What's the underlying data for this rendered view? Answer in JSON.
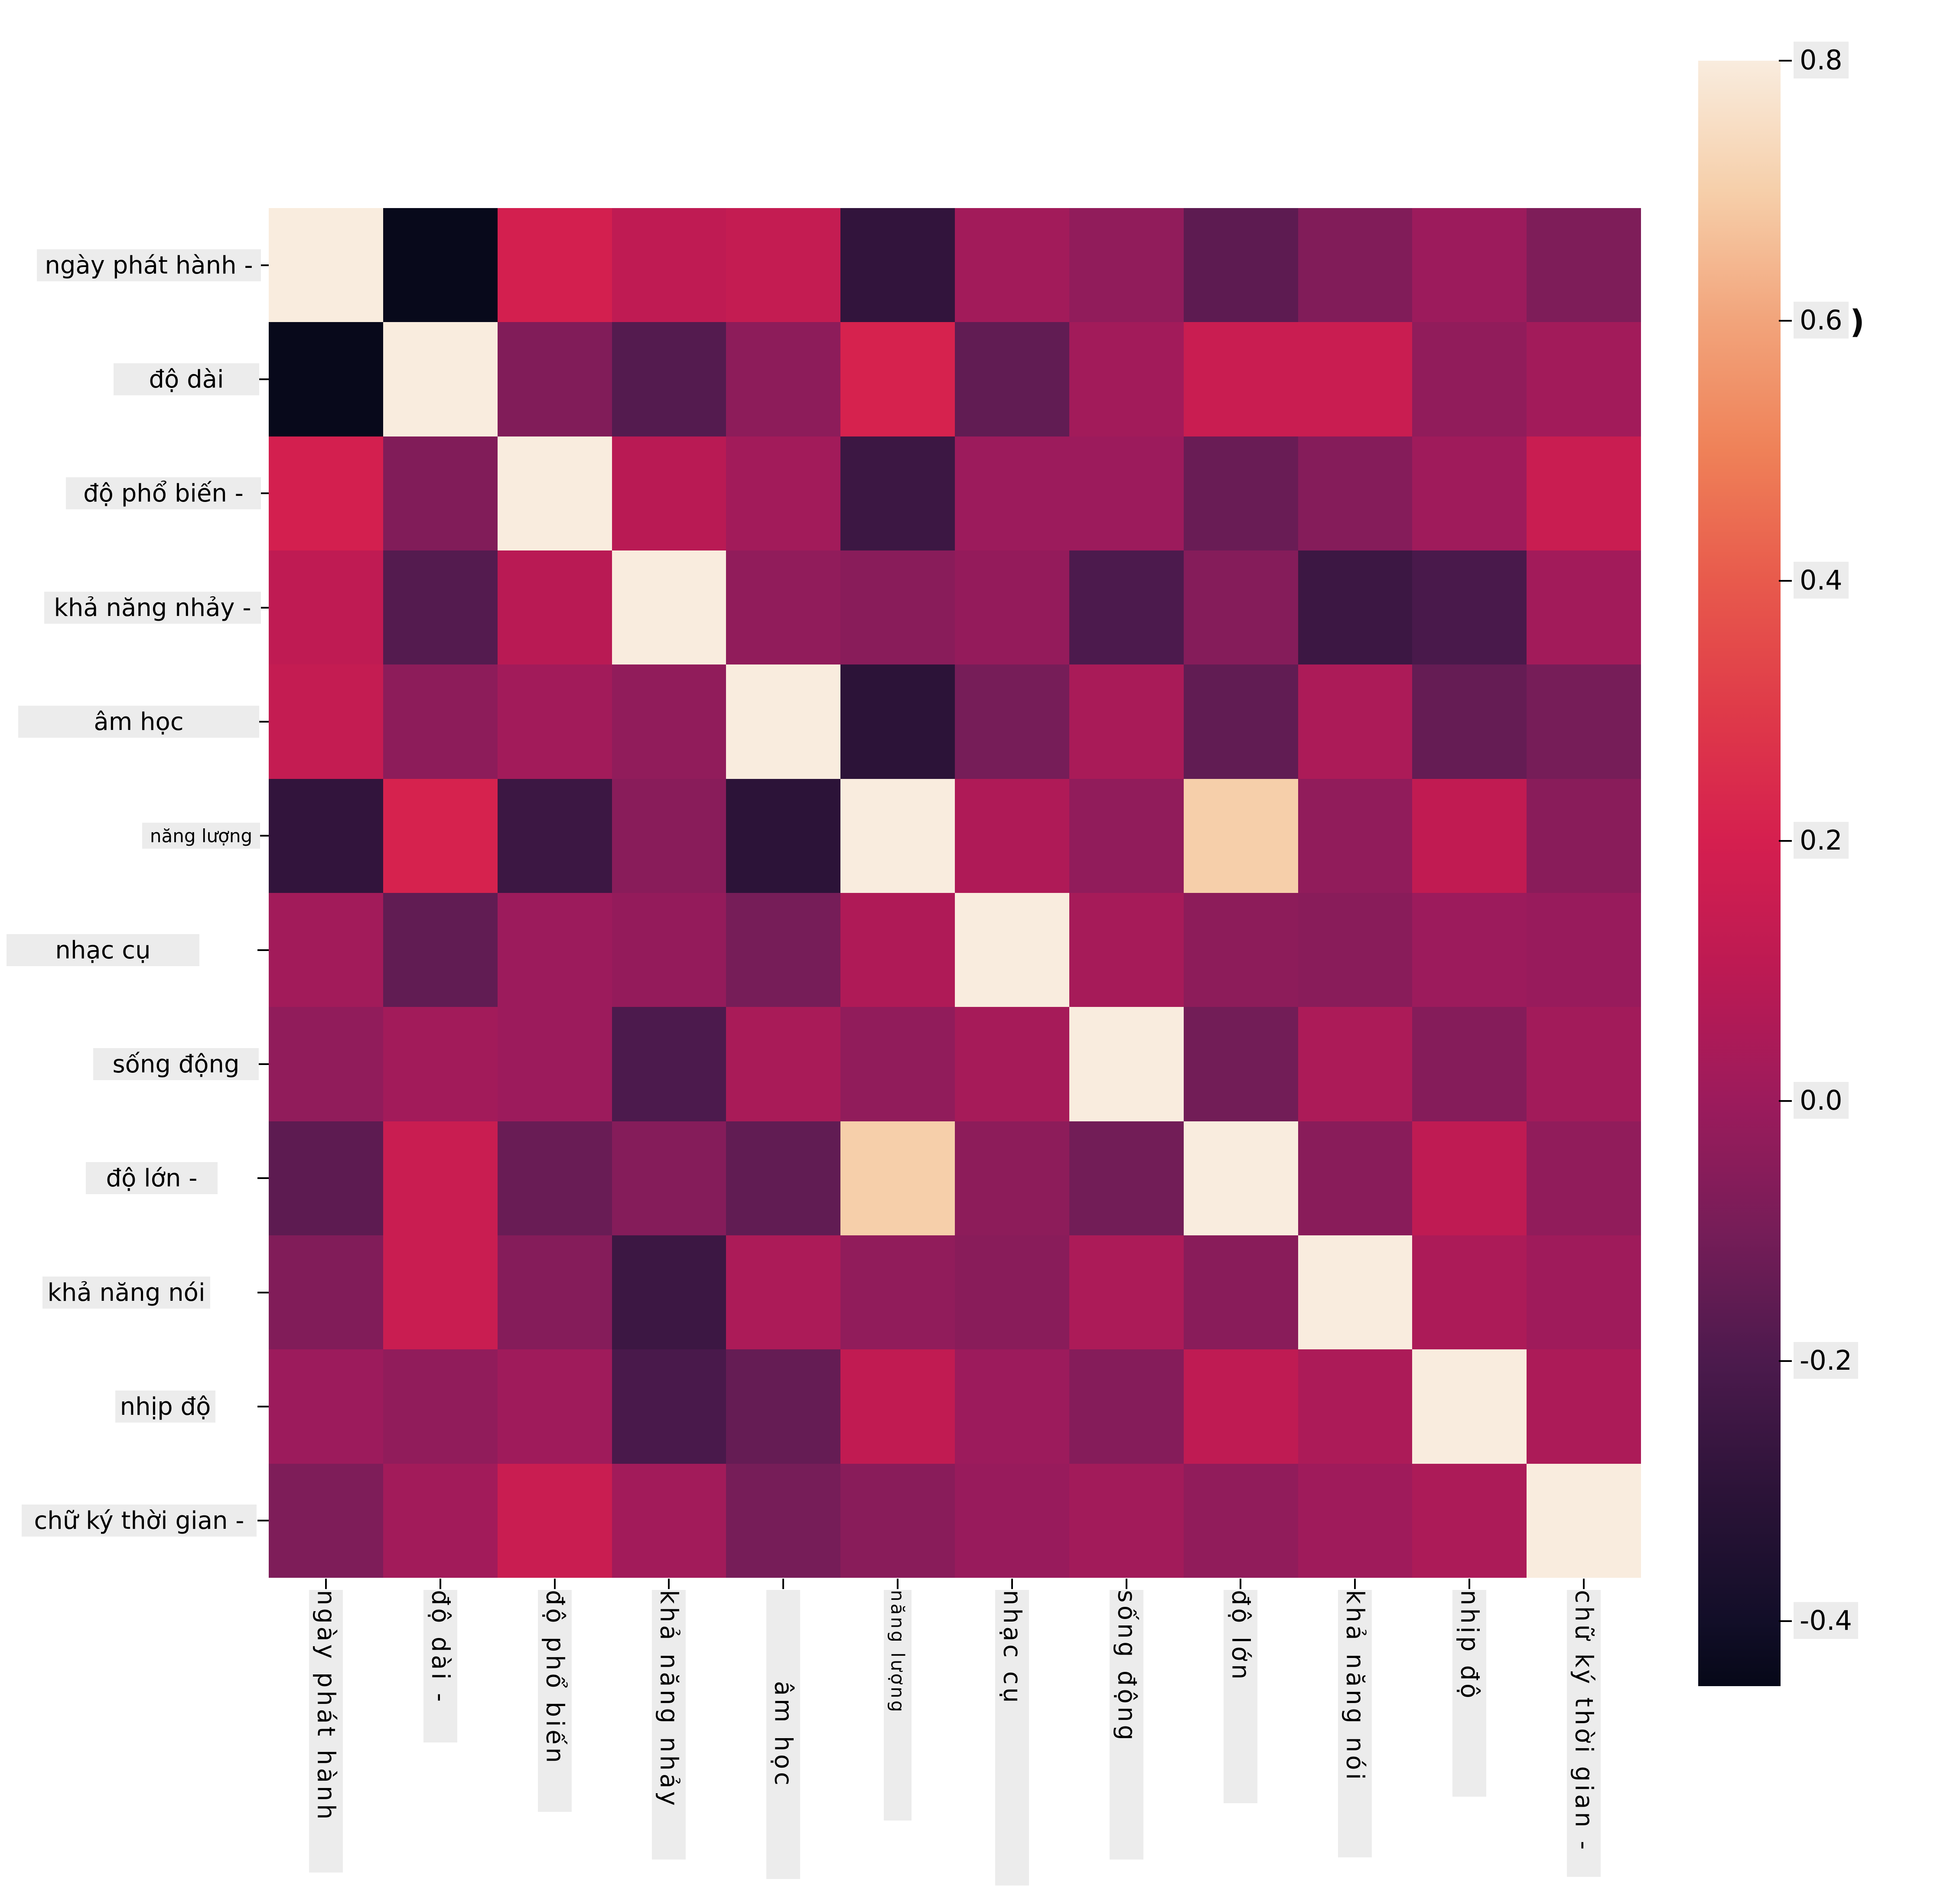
{
  "chart_data": {
    "type": "heatmap",
    "title": "",
    "row_labels": [
      "ngày phát hành -",
      "độ dài",
      "độ phổ biến -",
      "khả năng nhảy -",
      "âm học",
      "năng lượng",
      "nhạc cụ",
      "sống động",
      "độ lớn -",
      "khả năng nói",
      "nhịp độ",
      "chữ ký thời gian -"
    ],
    "col_labels": [
      "ngày phát hành",
      "độ dài -",
      "độ phổ biến",
      "khả năng nhảy",
      "âm học",
      "năng lượng",
      "nhạc cụ",
      "sống động",
      "độ lớn",
      "khả năng nói",
      "nhịp độ",
      "chữ ký thời gian -"
    ],
    "matrix": [
      [
        1.0,
        -0.44,
        0.19,
        0.11,
        0.13,
        -0.28,
        0.02,
        -0.03,
        -0.16,
        -0.07,
        0.0,
        -0.08
      ],
      [
        -0.44,
        1.0,
        -0.07,
        -0.18,
        -0.04,
        0.21,
        -0.15,
        0.02,
        0.15,
        0.15,
        -0.03,
        0.02
      ],
      [
        0.19,
        -0.07,
        1.0,
        0.09,
        0.02,
        -0.25,
        0.0,
        0.0,
        -0.13,
        -0.06,
        0.01,
        0.15
      ],
      [
        0.11,
        -0.18,
        0.09,
        1.0,
        -0.03,
        -0.05,
        -0.02,
        -0.2,
        -0.06,
        -0.25,
        -0.21,
        0.02
      ],
      [
        0.13,
        -0.04,
        0.02,
        -0.03,
        1.0,
        -0.3,
        -0.1,
        0.04,
        -0.15,
        0.05,
        -0.14,
        -0.1
      ],
      [
        -0.28,
        0.21,
        -0.25,
        -0.05,
        -0.3,
        1.0,
        0.06,
        -0.03,
        0.7,
        -0.03,
        0.12,
        -0.05
      ],
      [
        0.02,
        -0.15,
        0.0,
        -0.02,
        -0.1,
        0.06,
        1.0,
        0.03,
        -0.04,
        -0.05,
        0.0,
        -0.01
      ],
      [
        -0.03,
        0.02,
        0.0,
        -0.2,
        0.04,
        -0.03,
        0.03,
        1.0,
        -0.11,
        0.05,
        -0.06,
        0.02
      ],
      [
        -0.16,
        0.15,
        -0.13,
        -0.06,
        -0.15,
        0.7,
        -0.04,
        -0.11,
        1.0,
        -0.05,
        0.11,
        -0.03
      ],
      [
        -0.07,
        0.15,
        -0.06,
        -0.25,
        0.05,
        -0.03,
        -0.05,
        0.05,
        -0.05,
        1.0,
        0.05,
        0.01
      ],
      [
        0.0,
        -0.03,
        0.01,
        -0.21,
        -0.14,
        0.12,
        0.0,
        -0.06,
        0.11,
        0.05,
        1.0,
        0.05
      ],
      [
        -0.08,
        0.02,
        0.15,
        0.02,
        -0.1,
        -0.05,
        -0.01,
        0.02,
        -0.03,
        0.01,
        0.05,
        1.0
      ]
    ],
    "diagonal_value": 1.0,
    "vmin": -0.45,
    "vmax": 0.8,
    "colormap_name": "rocket",
    "colormap_stops": [
      [
        -0.45,
        "#060818"
      ],
      [
        -0.4,
        "#120E28"
      ],
      [
        -0.3,
        "#2C1338"
      ],
      [
        -0.2,
        "#4C1A4D"
      ],
      [
        -0.1,
        "#761D58"
      ],
      [
        0.0,
        "#9C1B5C"
      ],
      [
        0.1,
        "#BC1A53"
      ],
      [
        0.2,
        "#D51F4F"
      ],
      [
        0.3,
        "#DF3A49"
      ],
      [
        0.4,
        "#E85A4C"
      ],
      [
        0.5,
        "#EF8158"
      ],
      [
        0.6,
        "#F2A47B"
      ],
      [
        0.7,
        "#F6CFAA"
      ],
      [
        0.8,
        "#F9ECDE"
      ]
    ],
    "colorbar_ticks": [
      "0.8",
      "0.6",
      "0.4",
      "0.2",
      "0.0",
      "-0.2",
      "-0.4"
    ],
    "colorbar_tick_values": [
      0.8,
      0.6,
      0.4,
      0.2,
      0.0,
      -0.2,
      -0.4
    ],
    "colorbar_remnant_glyph": ")",
    "grid": false,
    "legend_position": "right-colorbar",
    "background_color": "#ffffff",
    "label_box_color": "#ececec",
    "label_text_color": "#000000"
  }
}
